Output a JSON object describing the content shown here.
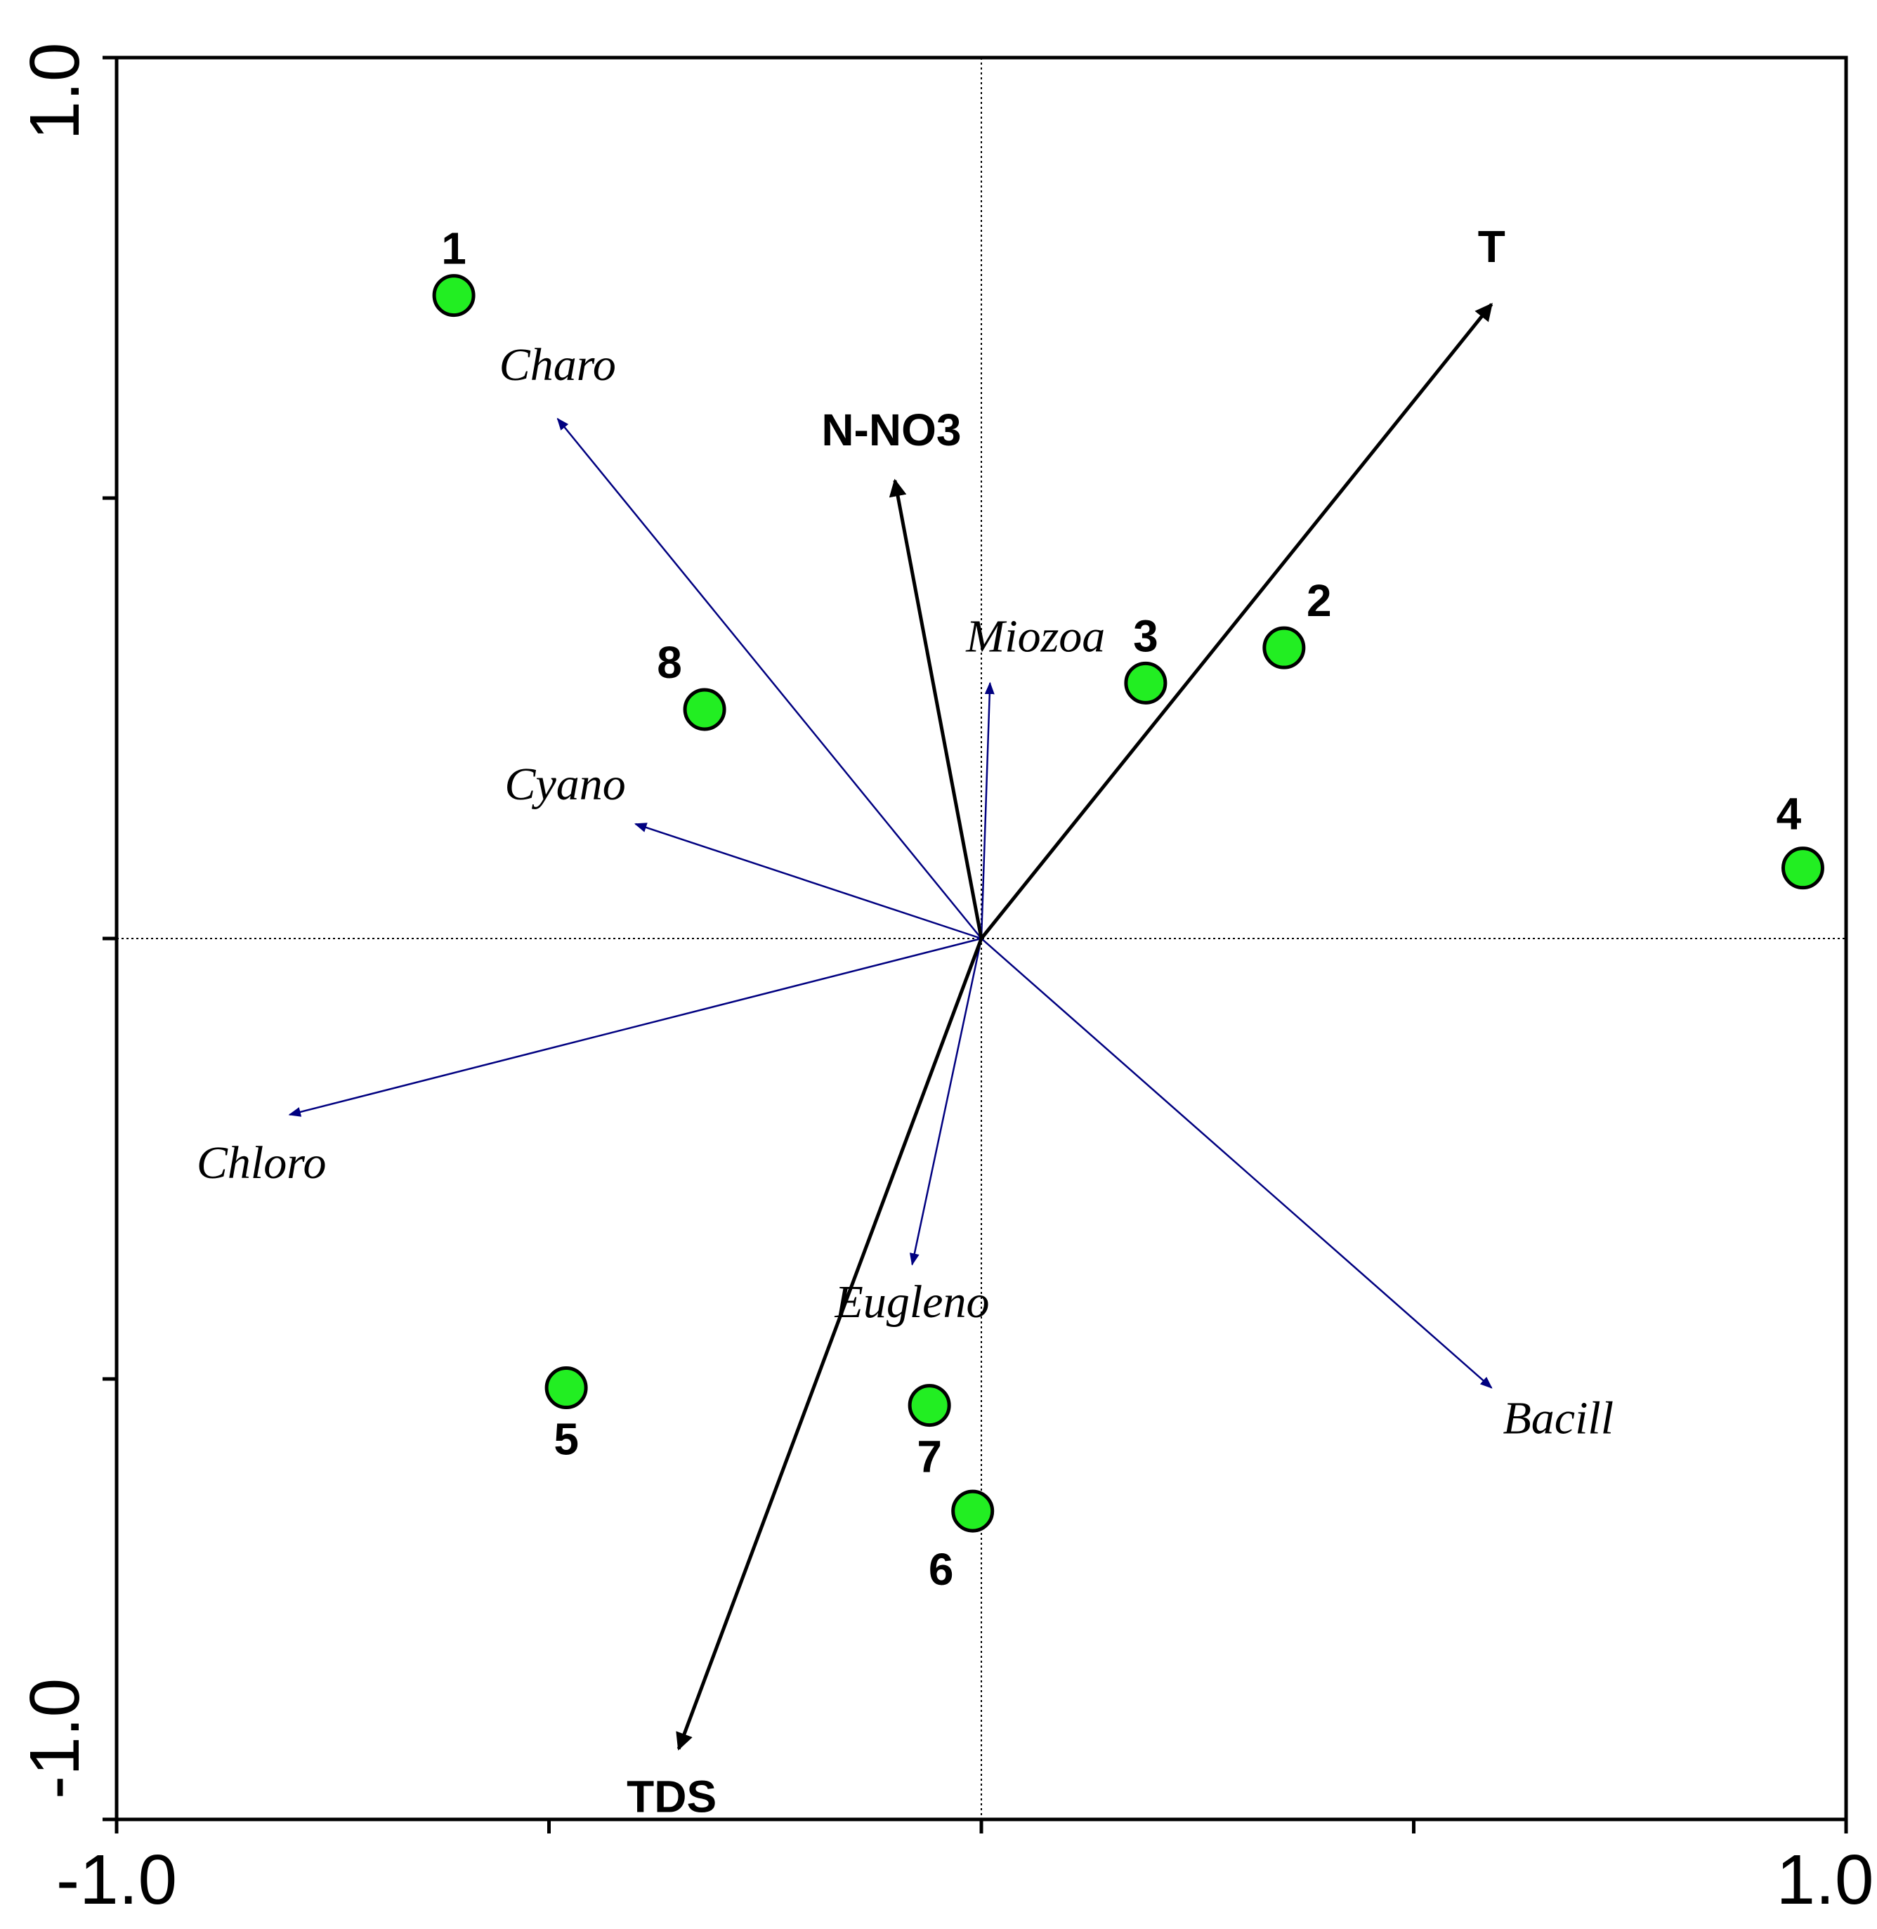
{
  "chart_data": {
    "type": "scatter",
    "xlim": [
      -1.0,
      1.0
    ],
    "ylim": [
      -1.0,
      1.0
    ],
    "x_tick_labels": [
      "-1.0",
      "1.0"
    ],
    "y_tick_labels": [
      "1.0",
      "-1.0"
    ],
    "minor_ticks": [
      -0.5,
      0.0,
      0.5
    ],
    "grid": false,
    "legend": "none",
    "reference_lines": [
      "x=0",
      "y=0"
    ],
    "sites": [
      {
        "label": "1",
        "x": -0.61,
        "y": 0.73
      },
      {
        "label": "2",
        "x": 0.35,
        "y": 0.33
      },
      {
        "label": "3",
        "x": 0.19,
        "y": 0.29
      },
      {
        "label": "4",
        "x": 0.95,
        "y": 0.08
      },
      {
        "label": "5",
        "x": -0.48,
        "y": -0.51
      },
      {
        "label": "6",
        "x": -0.01,
        "y": -0.65
      },
      {
        "label": "7",
        "x": -0.06,
        "y": -0.53
      },
      {
        "label": "8",
        "x": -0.32,
        "y": 0.26
      }
    ],
    "environmental_vectors": [
      {
        "label": "T",
        "x": 0.59,
        "y": 0.72
      },
      {
        "label": "N-NO3",
        "x": -0.1,
        "y": 0.52
      },
      {
        "label": "TDS",
        "x": -0.35,
        "y": -0.92
      }
    ],
    "species_vectors": [
      {
        "label": "Charo",
        "x": -0.49,
        "y": 0.59
      },
      {
        "label": "Cyano",
        "x": -0.4,
        "y": 0.13
      },
      {
        "label": "Chloro",
        "x": -0.8,
        "y": -0.2
      },
      {
        "label": "Miozoa",
        "x": 0.01,
        "y": 0.29
      },
      {
        "label": "Eugleno",
        "x": -0.08,
        "y": -0.37
      },
      {
        "label": "Bacill",
        "x": 0.59,
        "y": -0.51
      }
    ],
    "colors": {
      "site_fill": "#22ee22",
      "site_stroke": "#000000",
      "env_arrow": "#000000",
      "species_arrow": "#000080",
      "axis": "#000000"
    }
  }
}
